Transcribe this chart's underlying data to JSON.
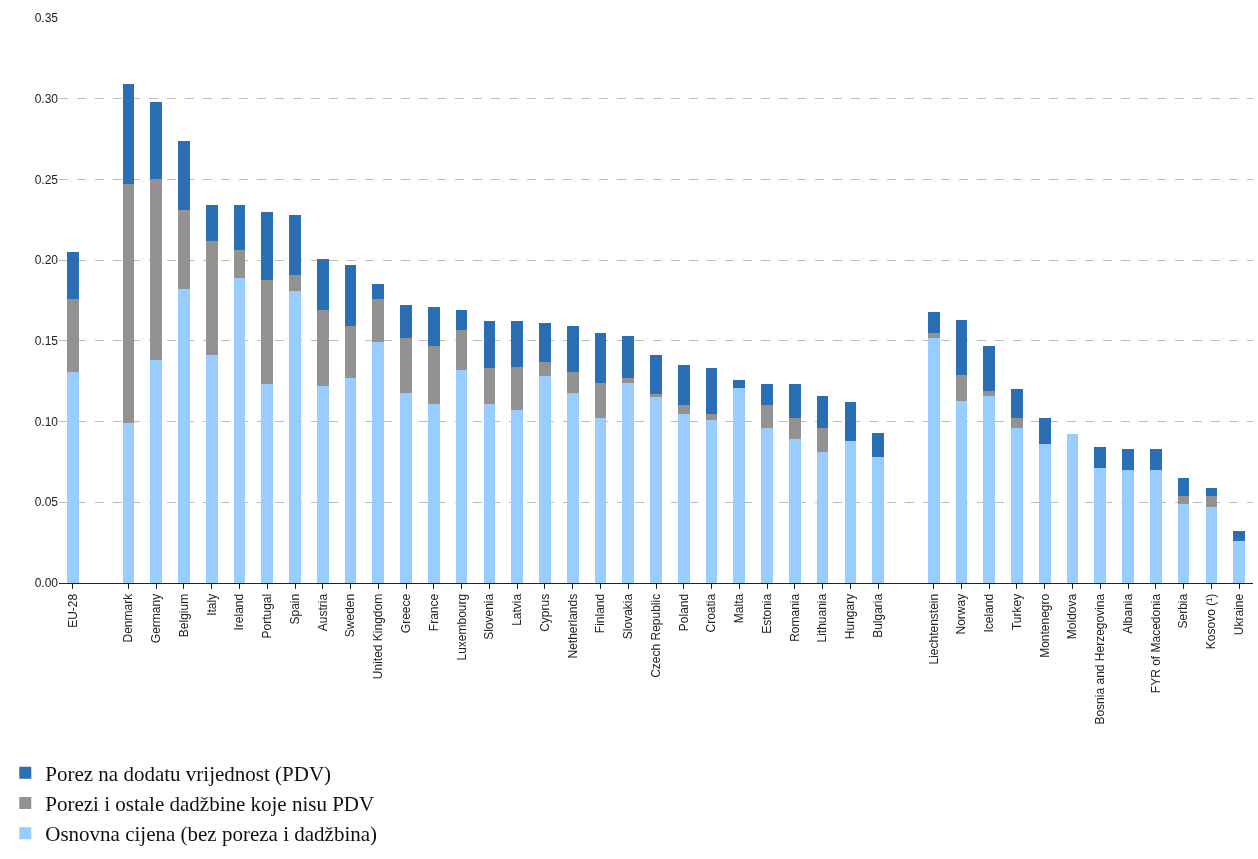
{
  "chart_data": {
    "type": "bar",
    "stacked": true,
    "grid": "y",
    "legend": "bottom left",
    "categories": [
      "EU-28",
      null,
      "Denmark",
      "Germany",
      "Belgium",
      "Italy",
      "Ireland",
      "Portugal",
      "Spain",
      "Austria",
      "Sweden",
      "United Kingdom",
      "Greece",
      "France",
      "Luxembourg",
      "Slovenia",
      "Latvia",
      "Cyprus",
      "Netherlands",
      "Finland",
      "Slovakia",
      "Czech Republic",
      "Poland",
      "Croatia",
      "Malta",
      "Estonia",
      "Romania",
      "Lithuania",
      "Hungary",
      "Bulgaria",
      null,
      "Liechtenstein",
      "Norway",
      "Iceland",
      "Turkey",
      "Montenegro",
      "Moldova",
      "Bosnia and Herzegovina",
      "Albania",
      "FYR of Macedonia",
      "Serbia",
      "Kosovo (¹)",
      "Ukraine"
    ],
    "ylim": [
      0,
      0.35
    ],
    "yticks": [
      {
        "value": 0,
        "label": "0.00"
      },
      {
        "value": 0.05,
        "label": "0.05"
      },
      {
        "value": 0.1,
        "label": "0.10"
      },
      {
        "value": 0.15,
        "label": "0.15"
      },
      {
        "value": 0.2,
        "label": "0.20"
      },
      {
        "value": 0.25,
        "label": "0.25"
      },
      {
        "value": 0.3,
        "label": "0.30"
      },
      {
        "value": 0.35,
        "label": "0.35"
      }
    ],
    "series": [
      {
        "name": "Osnovna cijena (bez poreza i dadžbina)",
        "color": "#99ccff",
        "values": [
          0.131,
          null,
          0.099,
          0.138,
          0.182,
          0.141,
          0.189,
          0.123,
          0.181,
          0.122,
          0.127,
          0.149,
          0.118,
          0.111,
          0.132,
          0.111,
          0.107,
          0.128,
          0.118,
          0.102,
          0.124,
          0.115,
          0.105,
          0.101,
          0.121,
          0.096,
          0.089,
          0.081,
          0.088,
          0.078,
          null,
          0.152,
          0.113,
          0.116,
          0.096,
          0.086,
          0.092,
          0.071,
          0.07,
          0.07,
          0.049,
          0.047,
          0.026
        ]
      },
      {
        "name": "Porezi i ostale dadžbine koje nisu PDV",
        "color": "#929292",
        "values": [
          0.045,
          null,
          0.148,
          0.112,
          0.049,
          0.071,
          0.017,
          0.065,
          0.01,
          0.047,
          0.032,
          0.027,
          0.034,
          0.036,
          0.025,
          0.022,
          0.027,
          0.009,
          0.013,
          0.022,
          0.003,
          0.002,
          0.005,
          0.004,
          0,
          0.014,
          0.013,
          0.015,
          0,
          0,
          null,
          0.003,
          0.016,
          0.003,
          0.006,
          0,
          0,
          0,
          0,
          0,
          0.005,
          0.007,
          0
        ]
      },
      {
        "name": "Porez na dodatu vrijednost (PDV)",
        "color": "#2a6eb4",
        "values": [
          0.029,
          null,
          0.062,
          0.048,
          0.043,
          0.022,
          0.028,
          0.042,
          0.037,
          0.032,
          0.038,
          0.009,
          0.02,
          0.024,
          0.012,
          0.029,
          0.028,
          0.024,
          0.028,
          0.031,
          0.026,
          0.024,
          0.025,
          0.028,
          0.005,
          0.013,
          0.021,
          0.02,
          0.024,
          0.015,
          null,
          0.013,
          0.034,
          0.028,
          0.018,
          0.016,
          0,
          0.013,
          0.013,
          0.013,
          0.011,
          0.005,
          0.006
        ]
      }
    ]
  }
}
